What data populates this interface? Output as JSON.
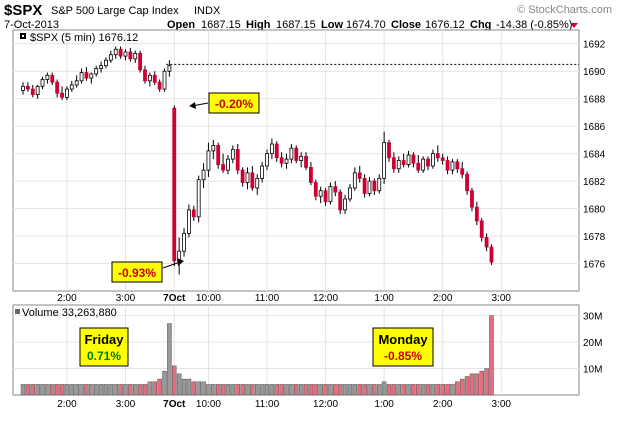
{
  "header": {
    "symbol": "$SPX",
    "name": "S&P 500 Large Cap Index",
    "exchange": "INDX",
    "watermark": "© StockCharts.com",
    "date": "7-Oct-2013",
    "open_label": "Open",
    "open_value": "1687.15",
    "high_label": "High",
    "high_value": "1687.15",
    "low_label": "Low",
    "low_value": "1674.70",
    "close_label": "Close",
    "close_value": "1676.12",
    "chg_label": "Chg",
    "chg_value": "-14.38 (-0.85%)"
  },
  "price_panel": {
    "legend": "$SPX (5 min) 1676.12",
    "ref_line_level": 1690.5
  },
  "volume_panel": {
    "legend": "Volume 33,263,880"
  },
  "annotations": {
    "open_drop": "-0.20%",
    "low_drop": "-0.93%",
    "friday_label": "Friday",
    "friday_value": "0.71%",
    "monday_label": "Monday",
    "monday_value": "-0.85%"
  },
  "colors": {
    "up_candle": "#ffffff",
    "down_candle": "#cc0033",
    "gain_text": "#007a00",
    "loss_text": "#cc0000",
    "annotation_bg": "#ffff00",
    "volume_up": "#999999",
    "volume_down": "#e07080"
  },
  "chart_data": {
    "type": "candlestick",
    "y_axis": {
      "ticks": [
        1676,
        1678,
        1680,
        1682,
        1684,
        1686,
        1688,
        1690,
        1692
      ],
      "range": [
        1674.0,
        1693.0
      ]
    },
    "volume_axis": {
      "ticks": [
        "10M",
        "20M",
        "30M"
      ],
      "tick_values": [
        10,
        20,
        30
      ],
      "range": [
        0,
        34
      ],
      "unit": "M"
    },
    "x_ticks": [
      {
        "label": "2:00",
        "index": 9
      },
      {
        "label": "3:00",
        "index": 21
      },
      {
        "label": "7Oct",
        "index": 31
      },
      {
        "label": "10:00",
        "index": 38
      },
      {
        "label": "11:00",
        "index": 50
      },
      {
        "label": "12:00",
        "index": 62
      },
      {
        "label": "1:00",
        "index": 74
      },
      {
        "label": "2:00",
        "index": 86
      },
      {
        "label": "3:00",
        "index": 98
      }
    ],
    "candles": [
      {
        "o": 1688.6,
        "h": 1689.2,
        "l": 1688.3,
        "c": 1688.9,
        "v": 4
      },
      {
        "o": 1688.9,
        "h": 1689.2,
        "l": 1688.5,
        "c": 1688.7,
        "v": 4
      },
      {
        "o": 1688.7,
        "h": 1689.0,
        "l": 1688.1,
        "c": 1688.3,
        "v": 4
      },
      {
        "o": 1688.3,
        "h": 1689.0,
        "l": 1688.0,
        "c": 1688.9,
        "v": 4
      },
      {
        "o": 1688.9,
        "h": 1689.6,
        "l": 1688.7,
        "c": 1689.4,
        "v": 4
      },
      {
        "o": 1689.4,
        "h": 1689.9,
        "l": 1689.1,
        "c": 1689.7,
        "v": 4
      },
      {
        "o": 1689.7,
        "h": 1689.9,
        "l": 1689.0,
        "c": 1689.2,
        "v": 4
      },
      {
        "o": 1689.2,
        "h": 1689.4,
        "l": 1688.1,
        "c": 1688.4,
        "v": 4
      },
      {
        "o": 1688.4,
        "h": 1688.9,
        "l": 1687.9,
        "c": 1688.1,
        "v": 4
      },
      {
        "o": 1688.1,
        "h": 1688.9,
        "l": 1687.9,
        "c": 1688.7,
        "v": 4
      },
      {
        "o": 1688.7,
        "h": 1689.3,
        "l": 1688.5,
        "c": 1689.0,
        "v": 4
      },
      {
        "o": 1689.0,
        "h": 1689.7,
        "l": 1688.8,
        "c": 1689.3,
        "v": 4
      },
      {
        "o": 1689.3,
        "h": 1690.2,
        "l": 1689.1,
        "c": 1689.9,
        "v": 4
      },
      {
        "o": 1689.9,
        "h": 1690.3,
        "l": 1689.3,
        "c": 1689.5,
        "v": 4
      },
      {
        "o": 1689.5,
        "h": 1689.9,
        "l": 1689.1,
        "c": 1689.8,
        "v": 4
      },
      {
        "o": 1689.8,
        "h": 1690.4,
        "l": 1689.6,
        "c": 1690.2,
        "v": 4
      },
      {
        "o": 1690.2,
        "h": 1690.7,
        "l": 1689.9,
        "c": 1690.4,
        "v": 4
      },
      {
        "o": 1690.4,
        "h": 1691.0,
        "l": 1690.2,
        "c": 1690.8,
        "v": 4
      },
      {
        "o": 1690.8,
        "h": 1691.5,
        "l": 1690.6,
        "c": 1691.2,
        "v": 4
      },
      {
        "o": 1691.2,
        "h": 1691.8,
        "l": 1690.9,
        "c": 1691.6,
        "v": 4
      },
      {
        "o": 1691.6,
        "h": 1691.8,
        "l": 1690.9,
        "c": 1691.1,
        "v": 4
      },
      {
        "o": 1691.1,
        "h": 1691.6,
        "l": 1690.8,
        "c": 1691.4,
        "v": 4
      },
      {
        "o": 1691.4,
        "h": 1691.7,
        "l": 1690.7,
        "c": 1690.9,
        "v": 4
      },
      {
        "o": 1690.9,
        "h": 1691.5,
        "l": 1690.6,
        "c": 1691.3,
        "v": 4
      },
      {
        "o": 1691.3,
        "h": 1691.5,
        "l": 1689.9,
        "c": 1690.1,
        "v": 4
      },
      {
        "o": 1690.1,
        "h": 1690.4,
        "l": 1689.1,
        "c": 1689.3,
        "v": 4
      },
      {
        "o": 1689.3,
        "h": 1689.9,
        "l": 1688.9,
        "c": 1689.7,
        "v": 5
      },
      {
        "o": 1689.7,
        "h": 1690.0,
        "l": 1689.0,
        "c": 1689.2,
        "v": 5
      },
      {
        "o": 1689.2,
        "h": 1689.4,
        "l": 1688.5,
        "c": 1688.7,
        "v": 6
      },
      {
        "o": 1688.7,
        "h": 1690.2,
        "l": 1688.5,
        "c": 1690.0,
        "v": 9
      },
      {
        "o": 1690.0,
        "h": 1690.8,
        "l": 1689.6,
        "c": 1690.4,
        "v": 27
      },
      {
        "o": 1687.3,
        "h": 1687.5,
        "l": 1675.8,
        "c": 1676.2,
        "v": 11
      },
      {
        "o": 1676.2,
        "h": 1677.9,
        "l": 1675.2,
        "c": 1676.9,
        "v": 8
      },
      {
        "o": 1676.9,
        "h": 1678.6,
        "l": 1676.5,
        "c": 1678.2,
        "v": 6
      },
      {
        "o": 1678.2,
        "h": 1680.3,
        "l": 1677.9,
        "c": 1679.9,
        "v": 6
      },
      {
        "o": 1679.9,
        "h": 1680.2,
        "l": 1679.1,
        "c": 1679.4,
        "v": 5
      },
      {
        "o": 1679.4,
        "h": 1682.4,
        "l": 1679.0,
        "c": 1682.1,
        "v": 5
      },
      {
        "o": 1682.1,
        "h": 1683.3,
        "l": 1681.5,
        "c": 1682.8,
        "v": 5
      },
      {
        "o": 1682.8,
        "h": 1684.8,
        "l": 1682.3,
        "c": 1684.2,
        "v": 4
      },
      {
        "o": 1684.2,
        "h": 1685.0,
        "l": 1683.6,
        "c": 1684.6,
        "v": 4
      },
      {
        "o": 1684.6,
        "h": 1684.8,
        "l": 1682.9,
        "c": 1683.2,
        "v": 4
      },
      {
        "o": 1683.2,
        "h": 1684.0,
        "l": 1682.6,
        "c": 1682.8,
        "v": 4
      },
      {
        "o": 1682.8,
        "h": 1683.9,
        "l": 1682.5,
        "c": 1683.6,
        "v": 4
      },
      {
        "o": 1683.6,
        "h": 1684.6,
        "l": 1683.3,
        "c": 1684.3,
        "v": 4
      },
      {
        "o": 1684.3,
        "h": 1684.7,
        "l": 1682.5,
        "c": 1682.8,
        "v": 4
      },
      {
        "o": 1682.8,
        "h": 1683.0,
        "l": 1681.6,
        "c": 1681.9,
        "v": 4
      },
      {
        "o": 1681.9,
        "h": 1683.0,
        "l": 1681.4,
        "c": 1682.6,
        "v": 4
      },
      {
        "o": 1682.6,
        "h": 1683.1,
        "l": 1681.3,
        "c": 1681.5,
        "v": 4
      },
      {
        "o": 1681.5,
        "h": 1682.5,
        "l": 1681.0,
        "c": 1682.2,
        "v": 4
      },
      {
        "o": 1682.2,
        "h": 1683.4,
        "l": 1681.9,
        "c": 1683.1,
        "v": 4
      },
      {
        "o": 1683.1,
        "h": 1684.3,
        "l": 1682.8,
        "c": 1684.0,
        "v": 4
      },
      {
        "o": 1684.0,
        "h": 1685.1,
        "l": 1683.6,
        "c": 1684.7,
        "v": 4
      },
      {
        "o": 1684.7,
        "h": 1684.9,
        "l": 1683.4,
        "c": 1683.7,
        "v": 4
      },
      {
        "o": 1683.7,
        "h": 1684.1,
        "l": 1683.0,
        "c": 1683.3,
        "v": 4
      },
      {
        "o": 1683.3,
        "h": 1684.0,
        "l": 1682.9,
        "c": 1683.6,
        "v": 4
      },
      {
        "o": 1683.6,
        "h": 1684.7,
        "l": 1683.3,
        "c": 1684.4,
        "v": 4
      },
      {
        "o": 1684.4,
        "h": 1684.6,
        "l": 1683.3,
        "c": 1683.5,
        "v": 4
      },
      {
        "o": 1683.5,
        "h": 1684.1,
        "l": 1683.0,
        "c": 1683.8,
        "v": 4
      },
      {
        "o": 1683.8,
        "h": 1684.1,
        "l": 1682.8,
        "c": 1683.0,
        "v": 4
      },
      {
        "o": 1683.0,
        "h": 1683.4,
        "l": 1681.7,
        "c": 1681.9,
        "v": 4
      },
      {
        "o": 1681.9,
        "h": 1682.1,
        "l": 1680.6,
        "c": 1680.9,
        "v": 4
      },
      {
        "o": 1680.9,
        "h": 1681.6,
        "l": 1680.4,
        "c": 1681.3,
        "v": 4
      },
      {
        "o": 1681.3,
        "h": 1681.5,
        "l": 1680.2,
        "c": 1680.5,
        "v": 4
      },
      {
        "o": 1680.5,
        "h": 1681.9,
        "l": 1680.3,
        "c": 1681.6,
        "v": 4
      },
      {
        "o": 1681.6,
        "h": 1682.0,
        "l": 1680.9,
        "c": 1681.2,
        "v": 4
      },
      {
        "o": 1681.2,
        "h": 1681.4,
        "l": 1679.6,
        "c": 1679.9,
        "v": 4
      },
      {
        "o": 1679.9,
        "h": 1681.0,
        "l": 1679.6,
        "c": 1680.7,
        "v": 4
      },
      {
        "o": 1680.7,
        "h": 1681.8,
        "l": 1680.5,
        "c": 1681.5,
        "v": 4
      },
      {
        "o": 1681.5,
        "h": 1683.0,
        "l": 1681.3,
        "c": 1682.6,
        "v": 4
      },
      {
        "o": 1682.6,
        "h": 1683.1,
        "l": 1681.9,
        "c": 1682.2,
        "v": 4
      },
      {
        "o": 1682.2,
        "h": 1682.5,
        "l": 1680.8,
        "c": 1681.1,
        "v": 4
      },
      {
        "o": 1681.1,
        "h": 1682.3,
        "l": 1680.9,
        "c": 1682.0,
        "v": 4
      },
      {
        "o": 1682.0,
        "h": 1682.2,
        "l": 1681.0,
        "c": 1681.3,
        "v": 4
      },
      {
        "o": 1681.3,
        "h": 1682.5,
        "l": 1681.1,
        "c": 1682.2,
        "v": 4
      },
      {
        "o": 1682.2,
        "h": 1685.6,
        "l": 1681.8,
        "c": 1684.8,
        "v": 5
      },
      {
        "o": 1684.8,
        "h": 1685.0,
        "l": 1683.4,
        "c": 1683.7,
        "v": 4
      },
      {
        "o": 1683.7,
        "h": 1684.1,
        "l": 1682.6,
        "c": 1682.9,
        "v": 4
      },
      {
        "o": 1682.9,
        "h": 1683.8,
        "l": 1682.6,
        "c": 1683.5,
        "v": 4
      },
      {
        "o": 1683.5,
        "h": 1684.0,
        "l": 1683.0,
        "c": 1683.2,
        "v": 4
      },
      {
        "o": 1683.2,
        "h": 1684.2,
        "l": 1683.0,
        "c": 1683.9,
        "v": 4
      },
      {
        "o": 1683.9,
        "h": 1684.1,
        "l": 1683.0,
        "c": 1683.3,
        "v": 4
      },
      {
        "o": 1683.3,
        "h": 1683.9,
        "l": 1682.6,
        "c": 1682.8,
        "v": 4
      },
      {
        "o": 1682.8,
        "h": 1683.8,
        "l": 1682.6,
        "c": 1683.6,
        "v": 4
      },
      {
        "o": 1683.6,
        "h": 1683.8,
        "l": 1682.8,
        "c": 1683.1,
        "v": 4
      },
      {
        "o": 1683.1,
        "h": 1684.3,
        "l": 1682.9,
        "c": 1684.0,
        "v": 4
      },
      {
        "o": 1684.0,
        "h": 1684.6,
        "l": 1683.4,
        "c": 1683.7,
        "v": 4
      },
      {
        "o": 1683.7,
        "h": 1684.0,
        "l": 1683.2,
        "c": 1683.5,
        "v": 4
      },
      {
        "o": 1683.5,
        "h": 1683.8,
        "l": 1682.5,
        "c": 1682.8,
        "v": 4
      },
      {
        "o": 1682.8,
        "h": 1683.6,
        "l": 1682.5,
        "c": 1683.4,
        "v": 4
      },
      {
        "o": 1683.4,
        "h": 1683.6,
        "l": 1682.6,
        "c": 1682.9,
        "v": 5
      },
      {
        "o": 1682.9,
        "h": 1683.4,
        "l": 1682.2,
        "c": 1682.5,
        "v": 6
      },
      {
        "o": 1682.5,
        "h": 1682.7,
        "l": 1681.0,
        "c": 1681.3,
        "v": 7
      },
      {
        "o": 1681.3,
        "h": 1681.5,
        "l": 1679.8,
        "c": 1680.1,
        "v": 8
      },
      {
        "o": 1680.1,
        "h": 1680.5,
        "l": 1678.8,
        "c": 1679.1,
        "v": 8
      },
      {
        "o": 1679.1,
        "h": 1679.3,
        "l": 1677.6,
        "c": 1677.9,
        "v": 9
      },
      {
        "o": 1677.9,
        "h": 1678.2,
        "l": 1676.9,
        "c": 1677.2,
        "v": 10
      },
      {
        "o": 1677.2,
        "h": 1677.4,
        "l": 1675.9,
        "c": 1676.1,
        "v": 30
      }
    ]
  }
}
